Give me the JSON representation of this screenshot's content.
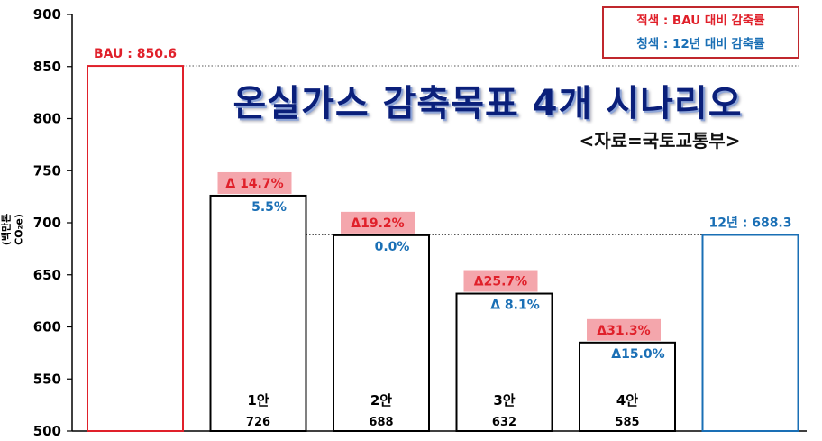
{
  "chart_data": {
    "type": "bar",
    "title": "온실가스 감축목표 4개 시나리오",
    "subtitle": "<자료=국토교통부>",
    "ylabel": "(백만톤CO₂e)",
    "ylim": [
      500,
      900
    ],
    "yticks": [
      "500",
      "550",
      "600",
      "650",
      "700",
      "750",
      "800",
      "850",
      "900"
    ],
    "grid": false,
    "legend": {
      "position": "top-right",
      "items": [
        {
          "text": "적색 : BAU  대비 감축률",
          "color": "#e0202a"
        },
        {
          "text": "청색 : 12년 대비 감축률",
          "color": "#1a6fb5"
        }
      ]
    },
    "reference_lines": [
      {
        "value": 850.6,
        "style": "dotted"
      },
      {
        "value": 688.3,
        "style": "dotted"
      }
    ],
    "bars": [
      {
        "category": "BAU",
        "value": 850.6,
        "top_label": "BAU : 850.6",
        "edge_color": "#e0202a"
      },
      {
        "category": "1안",
        "value": 726,
        "value_label": "726",
        "red_label": "Δ 14.7%",
        "blue_label": "5.5%",
        "edge_color": "#000000"
      },
      {
        "category": "2안",
        "value": 688,
        "value_label": "688",
        "red_label": "Δ19.2%",
        "blue_label": "0.0%",
        "edge_color": "#000000"
      },
      {
        "category": "3안",
        "value": 632,
        "value_label": "632",
        "red_label": "Δ25.7%",
        "blue_label": "Δ  8.1%",
        "edge_color": "#000000"
      },
      {
        "category": "4안",
        "value": 585,
        "value_label": "585",
        "red_label": "Δ31.3%",
        "blue_label": "Δ15.0%",
        "edge_color": "#000000"
      },
      {
        "category": "12년",
        "value": 688.3,
        "top_label": "12년 : 688.3",
        "edge_color": "#1a6fb5"
      }
    ],
    "colors": {
      "red": "#e0202a",
      "blue": "#1a6fb5",
      "red_label_bg": "#f4a6ac",
      "title": "#0a1f7a"
    }
  }
}
